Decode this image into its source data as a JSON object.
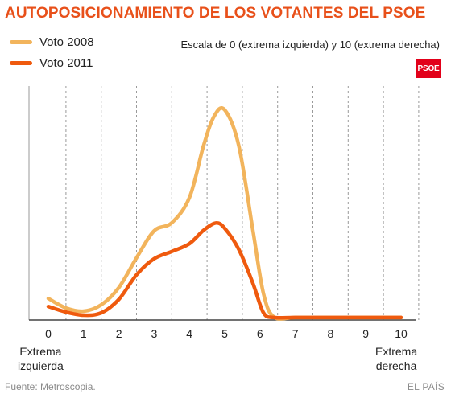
{
  "title": "AUTOPOSICIONAMIENTO DE LOS VOTANTES DEL PSOE",
  "subtitle": "Escala de 0 (extrema izquierda) y 10 (extrema derecha)",
  "logo_text": "PSOE",
  "footer": {
    "source": "Fuente: Metroscopia.",
    "credit": "EL PAÍS"
  },
  "end_labels": {
    "left": [
      "Extrema",
      "izquierda"
    ],
    "right": [
      "Extrema",
      "derecha"
    ]
  },
  "colors": {
    "title": "#e8501a",
    "vote_2008": "#f2b45c",
    "vote_2011": "#ef5a0e",
    "logo": "#e2001a"
  },
  "chart_data": {
    "type": "line",
    "xlabel": "",
    "ylabel": "",
    "x_ticks": [
      "0",
      "1",
      "2",
      "3",
      "4",
      "5",
      "6",
      "7",
      "8",
      "9",
      "10"
    ],
    "xlim": [
      -0.3,
      10.3
    ],
    "ylim": [
      0,
      100
    ],
    "y_axis_shown": false,
    "grid": "vertical dashed",
    "legend": "top-left",
    "series": [
      {
        "name": "Voto 2008",
        "color": "#f2b45c",
        "points": [
          [
            0,
            9.8
          ],
          [
            0.5,
            5.3
          ],
          [
            1,
            3.8
          ],
          [
            1.5,
            6.8
          ],
          [
            2,
            15
          ],
          [
            2.5,
            29
          ],
          [
            3,
            41.8
          ],
          [
            3.5,
            45.6
          ],
          [
            4,
            57.5
          ],
          [
            4.4,
            82
          ],
          [
            4.7,
            96
          ],
          [
            5,
            99
          ],
          [
            5.4,
            82
          ],
          [
            5.8,
            42
          ],
          [
            6.1,
            12
          ],
          [
            6.4,
            1
          ],
          [
            7,
            0.8
          ],
          [
            8,
            0.8
          ],
          [
            9,
            0.8
          ],
          [
            10,
            0.8
          ]
        ]
      },
      {
        "name": "Voto 2011",
        "color": "#ef5a0e",
        "points": [
          [
            0,
            6
          ],
          [
            0.5,
            3.4
          ],
          [
            1,
            1.9
          ],
          [
            1.5,
            3
          ],
          [
            2,
            9.4
          ],
          [
            2.5,
            21
          ],
          [
            3,
            28.6
          ],
          [
            3.5,
            32
          ],
          [
            4,
            35.7
          ],
          [
            4.4,
            42
          ],
          [
            4.75,
            45.5
          ],
          [
            5,
            43
          ],
          [
            5.4,
            33
          ],
          [
            5.8,
            17
          ],
          [
            6.1,
            3
          ],
          [
            6.4,
            0.8
          ],
          [
            7,
            0.8
          ],
          [
            8,
            0.8
          ],
          [
            9,
            0.8
          ],
          [
            10,
            0.8
          ]
        ]
      }
    ]
  }
}
